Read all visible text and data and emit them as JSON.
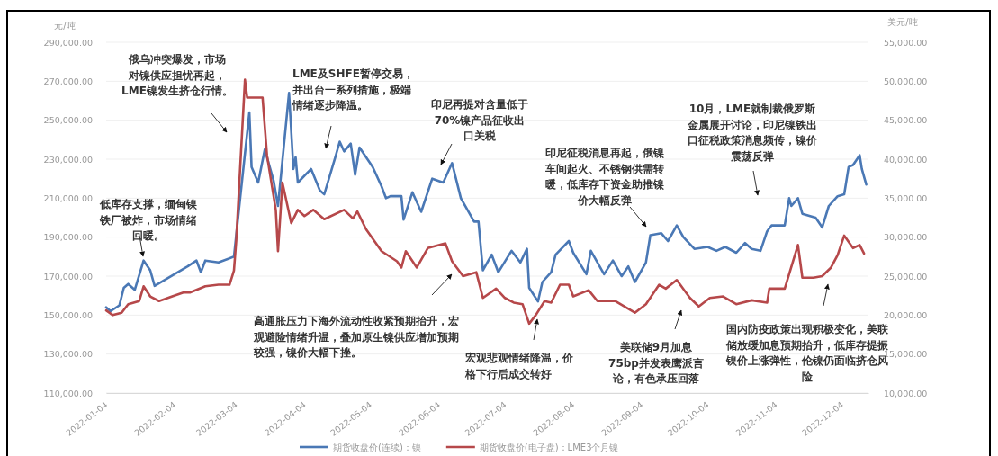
{
  "chart_data": {
    "type": "line",
    "ylabel": "元/吨",
    "y2label": "美元/吨",
    "xlim": [
      "2022-01-04",
      "2022-12-16"
    ],
    "xticks": [
      "2022-01-04",
      "2022-02-04",
      "2022-03-04",
      "2022-04-04",
      "2022-05-04",
      "2022-06-04",
      "2022-07-04",
      "2022-08-04",
      "2022-09-04",
      "2022-10-04",
      "2022-11-04",
      "2022-12-04"
    ],
    "ylim": [
      110000,
      290000
    ],
    "yticks": [
      {
        "value": 110000,
        "label": "110,000.00"
      },
      {
        "value": 130000,
        "label": "130,000.00"
      },
      {
        "value": 150000,
        "label": "150,000.00"
      },
      {
        "value": 170000,
        "label": "170,000.00"
      },
      {
        "value": 190000,
        "label": "190,000.00"
      },
      {
        "value": 210000,
        "label": "210,000.00"
      },
      {
        "value": 230000,
        "label": "230,000.00"
      },
      {
        "value": 250000,
        "label": "250,000.00"
      },
      {
        "value": 270000,
        "label": "270,000.00"
      },
      {
        "value": 290000,
        "label": "290,000.00"
      }
    ],
    "y2lim": [
      10000,
      55000
    ],
    "y2ticks": [
      {
        "value": 10000,
        "label": "10,000.00"
      },
      {
        "value": 15000,
        "label": "15,000.00"
      },
      {
        "value": 20000,
        "label": "20,000.00"
      },
      {
        "value": 25000,
        "label": "25,000.00"
      },
      {
        "value": 30000,
        "label": "30,000.00"
      },
      {
        "value": 35000,
        "label": "35,000.00"
      },
      {
        "value": 40000,
        "label": "40,000.00"
      },
      {
        "value": 45000,
        "label": "45,000.00"
      },
      {
        "value": 50000,
        "label": "50,000.00"
      },
      {
        "value": 55000,
        "label": "55,000.00"
      }
    ],
    "grid": "y",
    "legend": "bottom",
    "marker": "none",
    "line_style": "solid",
    "series": [
      {
        "name": "期货收盘价(连续)：镍",
        "color": "#4a78b5",
        "x": [
          "2022-01-04",
          "2022-01-06",
          "2022-01-10",
          "2022-01-12",
          "2022-01-14",
          "2022-01-17",
          "2022-01-21",
          "2022-01-24",
          "2022-01-26",
          "2022-02-10",
          "2022-02-14",
          "2022-02-16",
          "2022-02-18",
          "2022-02-24",
          "2022-03-03",
          "2022-03-10",
          "2022-03-11",
          "2022-03-14",
          "2022-03-17",
          "2022-03-21",
          "2022-03-23",
          "2022-03-28",
          "2022-03-30",
          "2022-03-31",
          "2022-04-01",
          "2022-04-07",
          "2022-04-11",
          "2022-04-13",
          "2022-04-18",
          "2022-04-20",
          "2022-04-22",
          "2022-04-25",
          "2022-04-27",
          "2022-04-29",
          "2022-05-05",
          "2022-05-09",
          "2022-05-11",
          "2022-05-13",
          "2022-05-18",
          "2022-05-19",
          "2022-05-23",
          "2022-05-27",
          "2022-06-01",
          "2022-06-06",
          "2022-06-10",
          "2022-06-14",
          "2022-06-20",
          "2022-06-22",
          "2022-06-24",
          "2022-06-28",
          "2022-07-01",
          "2022-07-07",
          "2022-07-11",
          "2022-07-14",
          "2022-07-15",
          "2022-07-19",
          "2022-07-21",
          "2022-07-25",
          "2022-07-27",
          "2022-08-02",
          "2022-08-04",
          "2022-08-10",
          "2022-08-12",
          "2022-08-18",
          "2022-08-22",
          "2022-08-26",
          "2022-08-29",
          "2022-09-01",
          "2022-09-06",
          "2022-09-08",
          "2022-09-13",
          "2022-09-16",
          "2022-09-20",
          "2022-09-23",
          "2022-09-28",
          "2022-10-04",
          "2022-10-08",
          "2022-10-12",
          "2022-10-17",
          "2022-10-21",
          "2022-10-24",
          "2022-10-28",
          "2022-10-31",
          "2022-11-02",
          "2022-11-08",
          "2022-11-10",
          "2022-11-11",
          "2022-11-14",
          "2022-11-16",
          "2022-11-22",
          "2022-11-25",
          "2022-11-28",
          "2022-12-02",
          "2022-12-05",
          "2022-12-07",
          "2022-12-09",
          "2022-12-12",
          "2022-12-13",
          "2022-12-15"
        ],
        "values": [
          154000,
          152000,
          155000,
          164000,
          166000,
          163000,
          178000,
          173000,
          165000,
          175000,
          178000,
          172000,
          178000,
          177000,
          180000,
          254000,
          226000,
          218000,
          235000,
          219000,
          206000,
          264000,
          225000,
          231000,
          218000,
          225000,
          214000,
          212000,
          231000,
          239000,
          234000,
          238000,
          222000,
          236000,
          226000,
          216000,
          210000,
          211000,
          211000,
          199000,
          213000,
          203000,
          220000,
          218000,
          228000,
          210000,
          198000,
          198000,
          173000,
          181000,
          172000,
          183000,
          177000,
          184000,
          164000,
          157000,
          167000,
          172000,
          181000,
          188000,
          182000,
          171000,
          183000,
          171000,
          178000,
          170000,
          175000,
          167000,
          177000,
          191000,
          192000,
          188000,
          196000,
          190000,
          184000,
          185000,
          183000,
          185000,
          182000,
          187000,
          184000,
          183000,
          193000,
          196000,
          196000,
          210000,
          206000,
          210000,
          202000,
          200000,
          195000,
          206000,
          211000,
          212000,
          226000,
          227000,
          232000,
          225000,
          217000
        ]
      },
      {
        "name": "期货收盘价(电子盘)：LME3个月镍",
        "color": "#b6484a",
        "axis": "y2",
        "x": [
          "2022-01-04",
          "2022-01-07",
          "2022-01-11",
          "2022-01-14",
          "2022-01-19",
          "2022-01-21",
          "2022-01-24",
          "2022-01-28",
          "2022-02-03",
          "2022-02-08",
          "2022-02-11",
          "2022-02-18",
          "2022-02-24",
          "2022-03-01",
          "2022-03-03",
          "2022-03-04",
          "2022-03-08",
          "2022-03-09",
          "2022-03-16",
          "2022-03-18",
          "2022-03-22",
          "2022-03-23",
          "2022-03-25",
          "2022-03-29",
          "2022-04-01",
          "2022-04-04",
          "2022-04-08",
          "2022-04-13",
          "2022-04-22",
          "2022-04-26",
          "2022-04-28",
          "2022-05-02",
          "2022-05-09",
          "2022-05-16",
          "2022-05-18",
          "2022-05-20",
          "2022-05-25",
          "2022-05-30",
          "2022-06-07",
          "2022-06-10",
          "2022-06-15",
          "2022-06-21",
          "2022-06-24",
          "2022-06-30",
          "2022-07-04",
          "2022-07-08",
          "2022-07-12",
          "2022-07-15",
          "2022-07-18",
          "2022-07-22",
          "2022-07-25",
          "2022-07-29",
          "2022-08-02",
          "2022-08-04",
          "2022-08-11",
          "2022-08-15",
          "2022-08-23",
          "2022-09-01",
          "2022-09-06",
          "2022-09-12",
          "2022-09-15",
          "2022-09-20",
          "2022-09-26",
          "2022-09-30",
          "2022-10-05",
          "2022-10-11",
          "2022-10-17",
          "2022-10-24",
          "2022-10-31",
          "2022-11-01",
          "2022-11-08",
          "2022-11-14",
          "2022-11-16",
          "2022-11-21",
          "2022-11-25",
          "2022-11-29",
          "2022-12-02",
          "2022-12-05",
          "2022-12-09",
          "2022-12-12",
          "2022-12-14"
        ],
        "values": [
          20600,
          20000,
          20300,
          21400,
          21800,
          23700,
          22400,
          21800,
          22400,
          22900,
          22900,
          23700,
          23900,
          23900,
          25700,
          29400,
          50200,
          47900,
          47900,
          40500,
          33500,
          28200,
          37000,
          31800,
          33500,
          32700,
          33500,
          32300,
          33500,
          32400,
          33300,
          31000,
          28200,
          26900,
          26100,
          28200,
          26100,
          28600,
          29200,
          26900,
          25000,
          25500,
          22200,
          23400,
          22200,
          21600,
          21400,
          18900,
          20000,
          21800,
          21600,
          23900,
          23900,
          22400,
          23200,
          21800,
          21800,
          20300,
          21400,
          23900,
          23400,
          24500,
          22200,
          21100,
          22200,
          22400,
          21400,
          21900,
          21600,
          23400,
          23400,
          29000,
          24800,
          24800,
          25000,
          26100,
          27700,
          30200,
          28600,
          29000,
          27900
        ]
      }
    ],
    "annotations": [
      "低库存支撑，缅甸镍铁厂被炸，市场情绪回暖。",
      "俄乌冲突爆发，市场对镍供应担忧再起，LME镍发生挤仓行情。",
      "LME及SHFE暂停交易，并出台一系列措施，极端情绪逐步降温。",
      "印尼再提对含量低于70%镍产品征收出口关税",
      "印尼征税消息再起，俄镍车间起火、不锈钢供需转暖，低库存下资金助推镍价大幅反弹",
      "10月，LME就制裁俄罗斯金属展开讨论，印尼镍铁出口征税政策消息频传，镍价震荡反弹",
      "高通胀压力下海外流动性收紧预期抬升，宏观避险情绪升温，叠加原生镍供应增加预期较强，镍价大幅下挫。",
      "宏观悲观情绪降温，价格下行后成交转好",
      "美联储9月加息75bp并发表鹰派言论，有色承压回落",
      "国内防疫政策出现积极变化，美联储放缓加息预期抬升，低库存提振镍价上涨弹性，伦镍仍面临挤仓风险"
    ]
  }
}
